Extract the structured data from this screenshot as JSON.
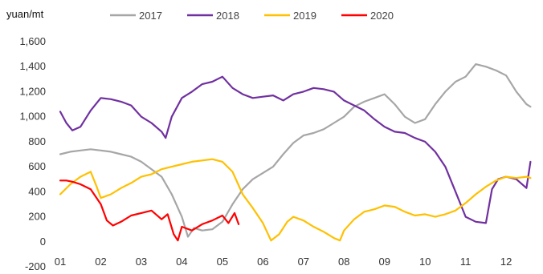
{
  "chart_data": {
    "type": "line",
    "unit_label": "yuan/mt",
    "ylim": [
      -200,
      1600
    ],
    "y_ticks": [
      -200,
      0,
      200,
      400,
      600,
      800,
      1000,
      1200,
      1400,
      1600
    ],
    "y_tick_labels": [
      "-200",
      "0",
      "200",
      "400",
      "600",
      "800",
      "1,000",
      "1,200",
      "1,400",
      "1,600"
    ],
    "x_range": [
      1,
      12.75
    ],
    "categories": [
      "01",
      "02",
      "03",
      "04",
      "05",
      "06",
      "07",
      "08",
      "09",
      "10",
      "11",
      "12"
    ],
    "grid": false,
    "legend": "top",
    "series": [
      {
        "name": "2017",
        "color": "#a6a6a6",
        "points": [
          [
            1.0,
            700
          ],
          [
            1.25,
            720
          ],
          [
            1.5,
            730
          ],
          [
            1.75,
            740
          ],
          [
            2.0,
            730
          ],
          [
            2.25,
            720
          ],
          [
            2.5,
            700
          ],
          [
            2.75,
            680
          ],
          [
            3.0,
            640
          ],
          [
            3.25,
            580
          ],
          [
            3.5,
            520
          ],
          [
            3.75,
            380
          ],
          [
            4.0,
            200
          ],
          [
            4.15,
            40
          ],
          [
            4.3,
            110
          ],
          [
            4.5,
            90
          ],
          [
            4.75,
            100
          ],
          [
            5.0,
            160
          ],
          [
            5.25,
            300
          ],
          [
            5.5,
            420
          ],
          [
            5.75,
            500
          ],
          [
            6.0,
            550
          ],
          [
            6.25,
            600
          ],
          [
            6.5,
            700
          ],
          [
            6.75,
            790
          ],
          [
            7.0,
            850
          ],
          [
            7.25,
            870
          ],
          [
            7.5,
            900
          ],
          [
            7.75,
            950
          ],
          [
            8.0,
            1000
          ],
          [
            8.25,
            1080
          ],
          [
            8.5,
            1120
          ],
          [
            8.75,
            1150
          ],
          [
            9.0,
            1180
          ],
          [
            9.25,
            1100
          ],
          [
            9.5,
            1000
          ],
          [
            9.75,
            950
          ],
          [
            10.0,
            980
          ],
          [
            10.25,
            1100
          ],
          [
            10.5,
            1200
          ],
          [
            10.75,
            1280
          ],
          [
            11.0,
            1320
          ],
          [
            11.25,
            1420
          ],
          [
            11.5,
            1400
          ],
          [
            11.75,
            1370
          ],
          [
            12.0,
            1330
          ],
          [
            12.25,
            1200
          ],
          [
            12.5,
            1100
          ],
          [
            12.6,
            1080
          ]
        ]
      },
      {
        "name": "2018",
        "color": "#7030a0",
        "points": [
          [
            1.0,
            1040
          ],
          [
            1.15,
            950
          ],
          [
            1.3,
            890
          ],
          [
            1.5,
            920
          ],
          [
            1.75,
            1050
          ],
          [
            2.0,
            1150
          ],
          [
            2.25,
            1140
          ],
          [
            2.5,
            1120
          ],
          [
            2.75,
            1090
          ],
          [
            3.0,
            1000
          ],
          [
            3.25,
            950
          ],
          [
            3.5,
            880
          ],
          [
            3.6,
            830
          ],
          [
            3.75,
            1000
          ],
          [
            4.0,
            1150
          ],
          [
            4.25,
            1200
          ],
          [
            4.5,
            1260
          ],
          [
            4.75,
            1280
          ],
          [
            5.0,
            1320
          ],
          [
            5.25,
            1230
          ],
          [
            5.5,
            1180
          ],
          [
            5.75,
            1150
          ],
          [
            6.0,
            1160
          ],
          [
            6.25,
            1170
          ],
          [
            6.5,
            1130
          ],
          [
            6.75,
            1180
          ],
          [
            7.0,
            1200
          ],
          [
            7.25,
            1230
          ],
          [
            7.5,
            1220
          ],
          [
            7.75,
            1200
          ],
          [
            8.0,
            1130
          ],
          [
            8.25,
            1090
          ],
          [
            8.5,
            1050
          ],
          [
            8.75,
            980
          ],
          [
            9.0,
            920
          ],
          [
            9.25,
            880
          ],
          [
            9.5,
            870
          ],
          [
            9.75,
            830
          ],
          [
            10.0,
            800
          ],
          [
            10.25,
            720
          ],
          [
            10.5,
            600
          ],
          [
            10.75,
            400
          ],
          [
            11.0,
            200
          ],
          [
            11.25,
            160
          ],
          [
            11.5,
            150
          ],
          [
            11.65,
            420
          ],
          [
            11.8,
            500
          ],
          [
            12.0,
            520
          ],
          [
            12.25,
            500
          ],
          [
            12.5,
            430
          ],
          [
            12.6,
            640
          ]
        ]
      },
      {
        "name": "2019",
        "color": "#ffc000",
        "points": [
          [
            1.0,
            380
          ],
          [
            1.25,
            460
          ],
          [
            1.5,
            520
          ],
          [
            1.75,
            560
          ],
          [
            1.9,
            440
          ],
          [
            2.0,
            350
          ],
          [
            2.25,
            380
          ],
          [
            2.5,
            430
          ],
          [
            2.75,
            470
          ],
          [
            3.0,
            520
          ],
          [
            3.25,
            540
          ],
          [
            3.5,
            580
          ],
          [
            3.75,
            600
          ],
          [
            4.0,
            620
          ],
          [
            4.25,
            640
          ],
          [
            4.5,
            650
          ],
          [
            4.75,
            660
          ],
          [
            5.0,
            640
          ],
          [
            5.25,
            560
          ],
          [
            5.5,
            380
          ],
          [
            5.75,
            270
          ],
          [
            6.0,
            150
          ],
          [
            6.2,
            10
          ],
          [
            6.4,
            60
          ],
          [
            6.6,
            160
          ],
          [
            6.75,
            200
          ],
          [
            7.0,
            170
          ],
          [
            7.25,
            120
          ],
          [
            7.5,
            80
          ],
          [
            7.75,
            30
          ],
          [
            7.9,
            10
          ],
          [
            8.0,
            90
          ],
          [
            8.25,
            180
          ],
          [
            8.5,
            240
          ],
          [
            8.75,
            260
          ],
          [
            9.0,
            290
          ],
          [
            9.25,
            280
          ],
          [
            9.5,
            240
          ],
          [
            9.75,
            210
          ],
          [
            10.0,
            220
          ],
          [
            10.25,
            200
          ],
          [
            10.5,
            220
          ],
          [
            10.75,
            250
          ],
          [
            11.0,
            310
          ],
          [
            11.25,
            380
          ],
          [
            11.5,
            440
          ],
          [
            11.75,
            490
          ],
          [
            12.0,
            520
          ],
          [
            12.25,
            510
          ],
          [
            12.5,
            520
          ],
          [
            12.6,
            510
          ]
        ]
      },
      {
        "name": "2020",
        "color": "#ff0000",
        "points": [
          [
            1.0,
            490
          ],
          [
            1.15,
            490
          ],
          [
            1.3,
            480
          ],
          [
            1.5,
            460
          ],
          [
            1.75,
            420
          ],
          [
            2.0,
            300
          ],
          [
            2.15,
            170
          ],
          [
            2.3,
            130
          ],
          [
            2.5,
            160
          ],
          [
            2.75,
            210
          ],
          [
            3.0,
            230
          ],
          [
            3.25,
            250
          ],
          [
            3.5,
            180
          ],
          [
            3.65,
            220
          ],
          [
            3.8,
            60
          ],
          [
            3.9,
            10
          ],
          [
            4.0,
            120
          ],
          [
            4.25,
            90
          ],
          [
            4.5,
            140
          ],
          [
            4.75,
            170
          ],
          [
            5.0,
            210
          ],
          [
            5.15,
            150
          ],
          [
            5.3,
            230
          ],
          [
            5.4,
            140
          ]
        ]
      }
    ]
  }
}
